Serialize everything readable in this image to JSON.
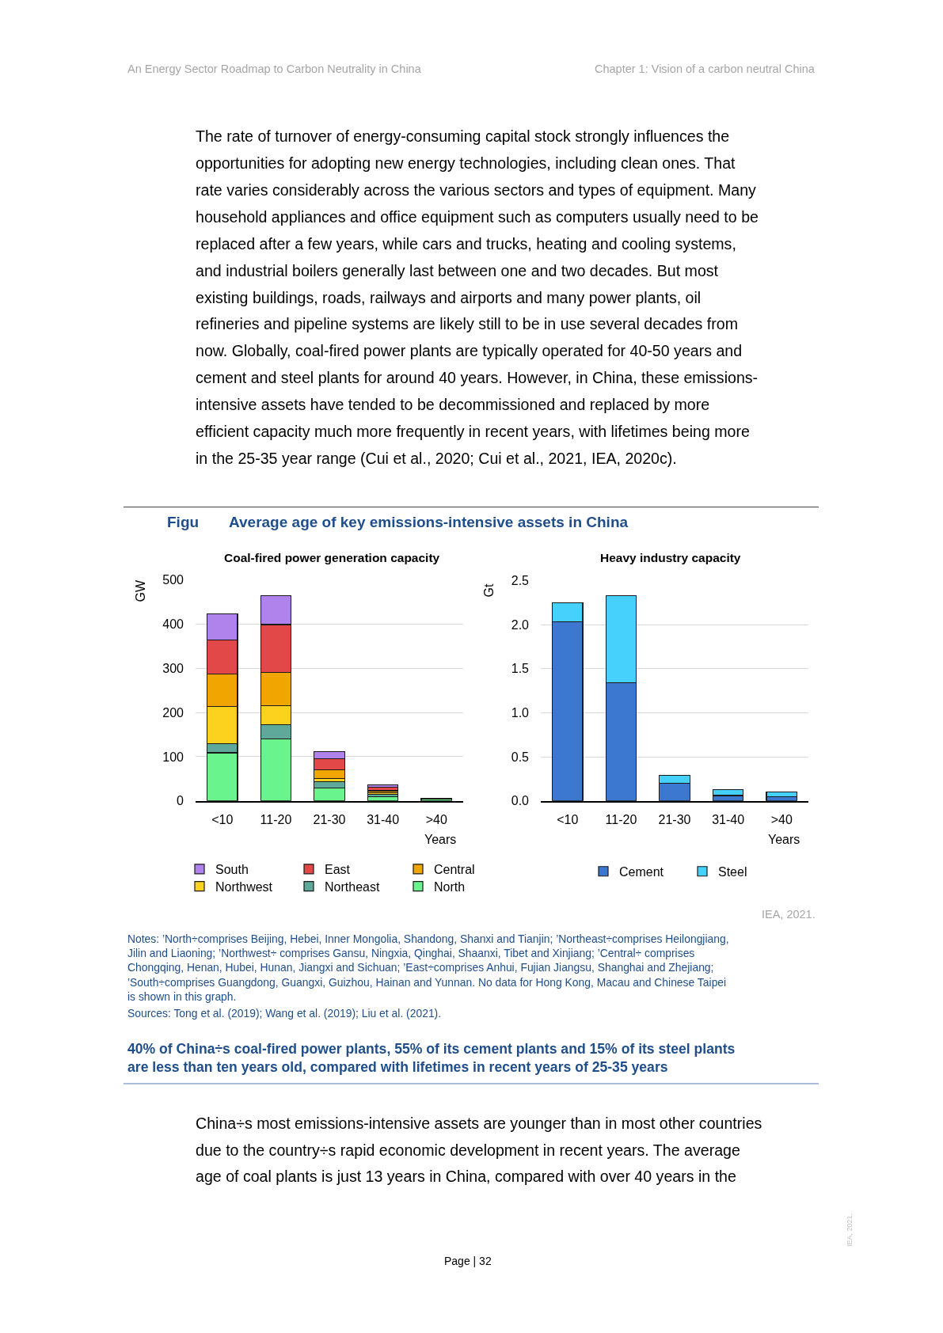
{
  "chart_data": [
    {
      "type": "bar",
      "title": "Coal-fired power generation capacity",
      "xlabel": "Years",
      "ylabel": "GW",
      "categories": [
        "<10",
        "11-20",
        "21-30",
        "31-40",
        ">40"
      ],
      "stacked": true,
      "ylim": [
        0,
        500
      ],
      "yticks": [
        0,
        100,
        200,
        300,
        400,
        500
      ],
      "grid": "y",
      "legend": "bottom",
      "series": [
        {
          "name": "North",
          "color": "#69f48e",
          "values": [
            109,
            140,
            29,
            10,
            5
          ]
        },
        {
          "name": "Northeast",
          "color": "#5fa99b",
          "values": [
            20,
            32,
            14,
            5,
            null
          ]
        },
        {
          "name": "Northwest",
          "color": "#fdd21f",
          "values": [
            84,
            43,
            8,
            3,
            null
          ]
        },
        {
          "name": "Central",
          "color": "#f0a500",
          "values": [
            74,
            76,
            19,
            5,
            null
          ]
        },
        {
          "name": "East",
          "color": "#e24848",
          "values": [
            77,
            108,
            26,
            8,
            null
          ]
        },
        {
          "name": "South",
          "color": "#b083ec",
          "values": [
            59,
            65,
            16,
            6,
            null
          ]
        }
      ],
      "annotations": [
        "An Energy Sector Roadmap to Carbon Neutrality in China",
        "Chapter 1: Vision of a carbon neutral China",
        "The rate of turnover of energy-consuming capital stock strongly influences the\nopportunities for adopting new energy technologies, including clean ones. That\nrate varies considerably across the various sectors and types of equipment. Many\nhousehold appliances and office equipment such as computers usually need to be\nreplaced after a few years, while cars and trucks, heating and cooling systems,\nand industrial boilers generally last between one and two decades. But most\nexisting buildings, roads, railways and airports and many power plants, oil\nrefineries and pipeline systems are likely still to be in use several decades from\nnow. Globally, coal-fired power plants are typically operated for 40-50 years and\ncement and steel plants for around 40 years. However, in China, these emissions-\nintensive assets have tended to be decommissioned and replaced by more\nefficient capacity much more frequently in recent years, with lifetimes being more\nin the 25-35 year range (Cui et al., 2020; Cui et al., 2021, IEA, 2020c).",
        "Figu",
        "Average age of key emissions-intensive assets in China",
        "IEA, 2021.",
        "Notes: ’North÷comprises Beijing, Hebei, Inner Mongolia, Shandong, Shanxi and Tianjin; ’Northeast÷comprises Heilongjiang,\nJilin and Liaoning; ’Northwest÷ comprises Gansu, Ningxia, Qinghai, Shaanxi, Tibet and Xinjiang; ’Central÷ comprises\nChongqing, Henan, Hubei, Hunan, Jiangxi and Sichuan; ’East÷comprises Anhui, Fujian Jiangsu, Shanghai and Zhejiang;\n’South÷comprises Guangdong, Guangxi, Guizhou, Hainan and Yunnan. No data for Hong Kong, Macau and Chinese Taipei\nis shown in this graph.",
        "Sources: Tong et al. (2019); Wang et al. (2019); Liu et al. (2021).",
        "40% of China÷s coal-fired power plants, 55% of its cement plants and 15% of its steel plants\nare less than ten years old, compared with lifetimes in recent years of 25-35 years",
        "China÷s most emissions-intensive assets are younger than in most other countries\ndue to the country÷s rapid economic development in recent years. The average\nage of coal plants is just 13 years in China, compared with over 40 years in the",
        "Page | 32",
        "IEA, 2021."
      ]
    },
    {
      "type": "bar",
      "title": "Heavy industry capacity",
      "xlabel": "Years",
      "ylabel": "Gt",
      "categories": [
        "<10",
        "11-20",
        "21-30",
        "31-40",
        ">40"
      ],
      "stacked": true,
      "ylim": [
        0,
        2.5
      ],
      "yticks": [
        {
          "value": 0,
          "label": "0.0"
        },
        0.5,
        {
          "value": 1,
          "label": "1.0"
        },
        1.5,
        {
          "value": 2,
          "label": "2.0"
        },
        2.5
      ],
      "grid": "y",
      "legend": "bottom",
      "series": [
        {
          "name": "Cement",
          "color": "#3d78d0",
          "values": [
            2.03,
            1.34,
            0.2,
            0.06,
            0.05
          ]
        },
        {
          "name": "Steel",
          "color": "#45d1fc",
          "values": [
            0.22,
            0.99,
            0.09,
            0.07,
            0.05
          ]
        }
      ]
    }
  ]
}
